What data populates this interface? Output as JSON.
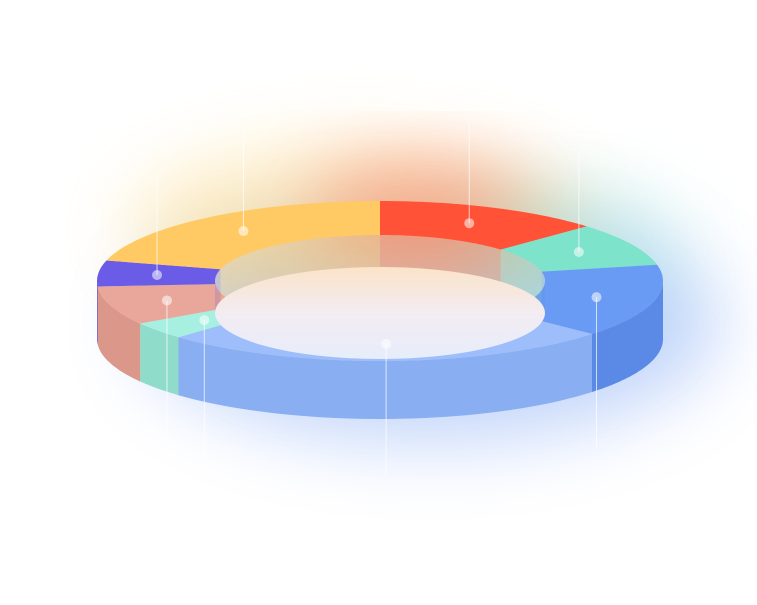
{
  "chart_data": {
    "type": "pie",
    "style": "3d-donut",
    "labels_visible": false,
    "slices": [
      {
        "value": 15,
        "color": "#FF5236",
        "side_color": "#E8452D"
      },
      {
        "value": 10,
        "color": "#7EE3CB",
        "side_color": "#68CDB6"
      },
      {
        "value": 17,
        "color": "#6A9BF4",
        "side_color": "#5A8AE6"
      },
      {
        "value": 30,
        "color": "#9DBEFA",
        "side_color": "#8AAEF2"
      },
      {
        "value": 4,
        "color": "#A7EFE0",
        "side_color": "#90DCCB"
      },
      {
        "value": 9,
        "color": "#E9A79C",
        "side_color": "#DC978B"
      },
      {
        "value": 6,
        "color": "#6B5CE7",
        "side_color": "#5A4DD3"
      },
      {
        "value": 24,
        "color": "#FFCA64",
        "side_color": "#F0B84E"
      }
    ],
    "glow_colors": [
      "#FF6A4D",
      "#FFD36B",
      "#4E84F2",
      "#7EE3CB"
    ]
  }
}
